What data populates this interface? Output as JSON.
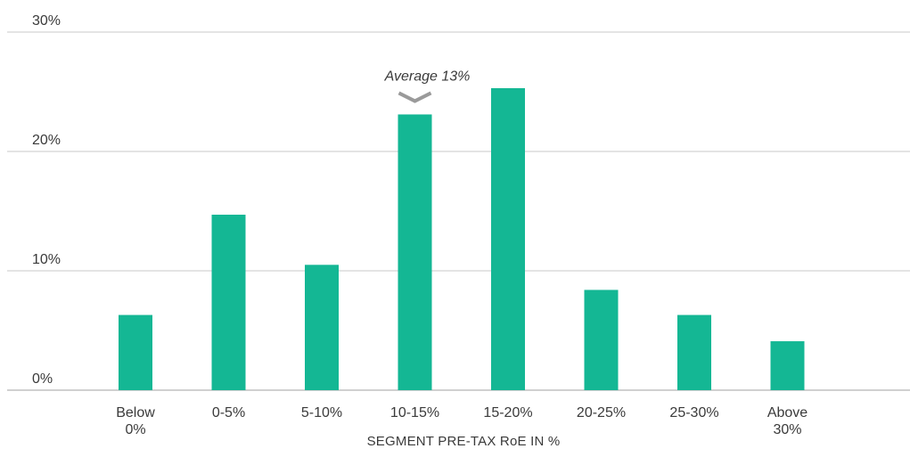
{
  "chart_data": {
    "type": "bar",
    "categories": [
      [
        "Below",
        "0%"
      ],
      [
        "0-5%"
      ],
      [
        "5-10%"
      ],
      [
        "10-15%"
      ],
      [
        "15-20%"
      ],
      [
        "20-25%"
      ],
      [
        "25-30%"
      ],
      [
        "Above",
        "30%"
      ]
    ],
    "values": [
      6.3,
      14.7,
      10.5,
      23.1,
      25.3,
      8.4,
      6.3,
      4.1
    ],
    "ylim": [
      0,
      30
    ],
    "yticks": [
      0,
      10,
      20,
      30
    ],
    "ytick_labels": [
      "0%",
      "10%",
      "20%",
      "30%"
    ],
    "xlabel": "SEGMENT PRE-TAX RoE IN %",
    "ylabel": "",
    "grid": true,
    "bar_color": "#14b794",
    "grid_color": "#c8c8c8",
    "annotation": {
      "text": "Average 13%",
      "category_index": 3,
      "marker_color": "#9a9a9a"
    }
  }
}
